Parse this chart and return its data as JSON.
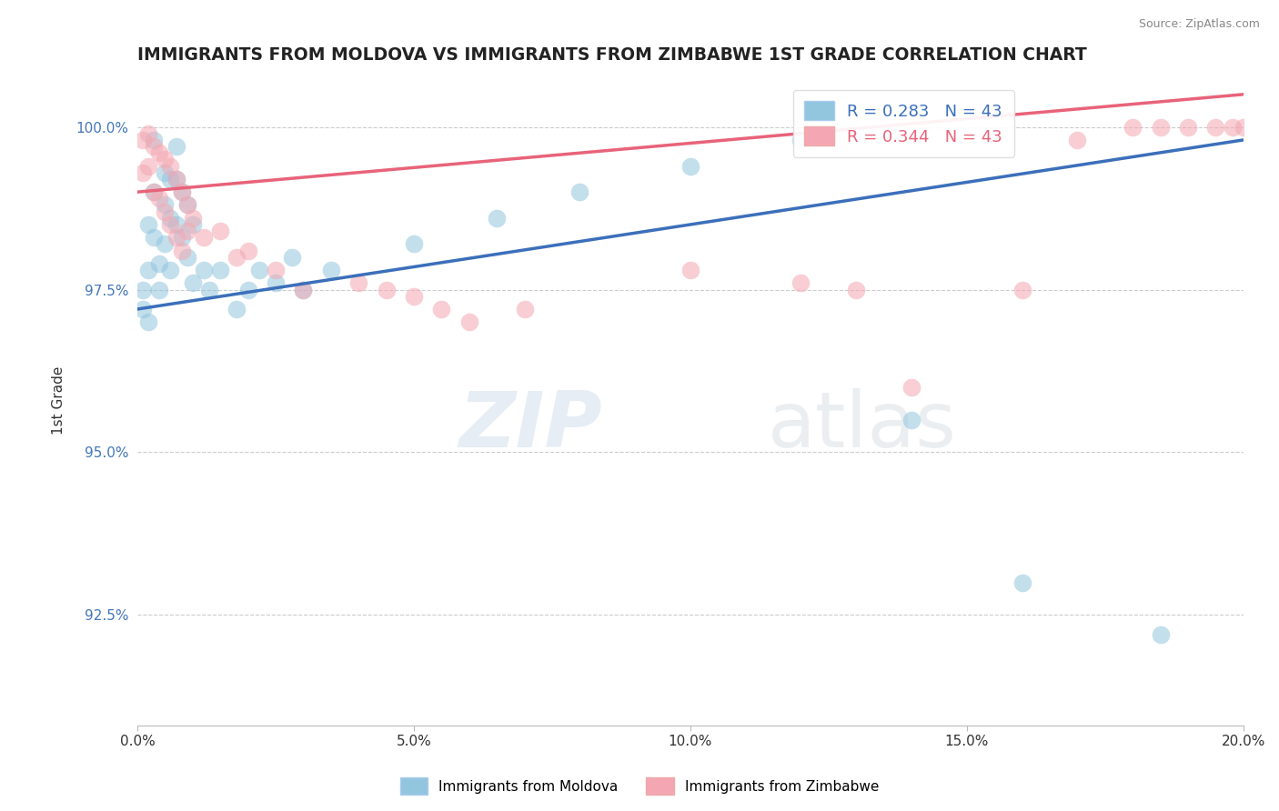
{
  "title": "IMMIGRANTS FROM MOLDOVA VS IMMIGRANTS FROM ZIMBABWE 1ST GRADE CORRELATION CHART",
  "source": "Source: ZipAtlas.com",
  "ylabel": "1st Grade",
  "xlim": [
    0.0,
    0.2
  ],
  "ylim": [
    0.908,
    1.008
  ],
  "xticks": [
    0.0,
    0.05,
    0.1,
    0.15,
    0.2
  ],
  "xtick_labels": [
    "0.0%",
    "5.0%",
    "10.0%",
    "15.0%",
    "20.0%"
  ],
  "yticks": [
    0.925,
    0.95,
    0.975,
    1.0
  ],
  "ytick_labels": [
    "92.5%",
    "95.0%",
    "97.5%",
    "100.0%"
  ],
  "moldova_color": "#92c5de",
  "zimbabwe_color": "#f4a7b2",
  "moldova_R": 0.283,
  "moldova_N": 43,
  "zimbabwe_R": 0.344,
  "zimbabwe_N": 43,
  "moldova_line_color": "#3b6fba",
  "zimbabwe_line_color": "#e8637a",
  "background_color": "#ffffff",
  "moldova_x": [
    0.001,
    0.001,
    0.002,
    0.002,
    0.002,
    0.003,
    0.003,
    0.003,
    0.004,
    0.004,
    0.005,
    0.005,
    0.005,
    0.006,
    0.006,
    0.006,
    0.007,
    0.007,
    0.007,
    0.008,
    0.008,
    0.009,
    0.009,
    0.01,
    0.01,
    0.012,
    0.013,
    0.015,
    0.018,
    0.02,
    0.022,
    0.025,
    0.028,
    0.03,
    0.035,
    0.05,
    0.065,
    0.08,
    0.1,
    0.12,
    0.14,
    0.16,
    0.185
  ],
  "moldova_y": [
    0.975,
    0.972,
    0.985,
    0.978,
    0.97,
    0.998,
    0.99,
    0.983,
    0.979,
    0.975,
    0.993,
    0.988,
    0.982,
    0.992,
    0.986,
    0.978,
    0.997,
    0.992,
    0.985,
    0.99,
    0.983,
    0.988,
    0.98,
    0.985,
    0.976,
    0.978,
    0.975,
    0.978,
    0.972,
    0.975,
    0.978,
    0.976,
    0.98,
    0.975,
    0.978,
    0.982,
    0.986,
    0.99,
    0.994,
    0.998,
    0.955,
    0.93,
    0.922
  ],
  "zimbabwe_x": [
    0.001,
    0.001,
    0.002,
    0.002,
    0.003,
    0.003,
    0.004,
    0.004,
    0.005,
    0.005,
    0.006,
    0.006,
    0.007,
    0.007,
    0.008,
    0.008,
    0.009,
    0.009,
    0.01,
    0.012,
    0.015,
    0.018,
    0.02,
    0.025,
    0.03,
    0.04,
    0.045,
    0.05,
    0.055,
    0.06,
    0.07,
    0.1,
    0.12,
    0.14,
    0.16,
    0.17,
    0.18,
    0.185,
    0.19,
    0.195,
    0.198,
    0.2,
    0.13
  ],
  "zimbabwe_y": [
    0.998,
    0.993,
    0.999,
    0.994,
    0.997,
    0.99,
    0.996,
    0.989,
    0.995,
    0.987,
    0.994,
    0.985,
    0.992,
    0.983,
    0.99,
    0.981,
    0.988,
    0.984,
    0.986,
    0.983,
    0.984,
    0.98,
    0.981,
    0.978,
    0.975,
    0.976,
    0.975,
    0.974,
    0.972,
    0.97,
    0.972,
    0.978,
    0.976,
    0.96,
    0.975,
    0.998,
    1.0,
    1.0,
    1.0,
    1.0,
    1.0,
    1.0,
    0.975
  ]
}
